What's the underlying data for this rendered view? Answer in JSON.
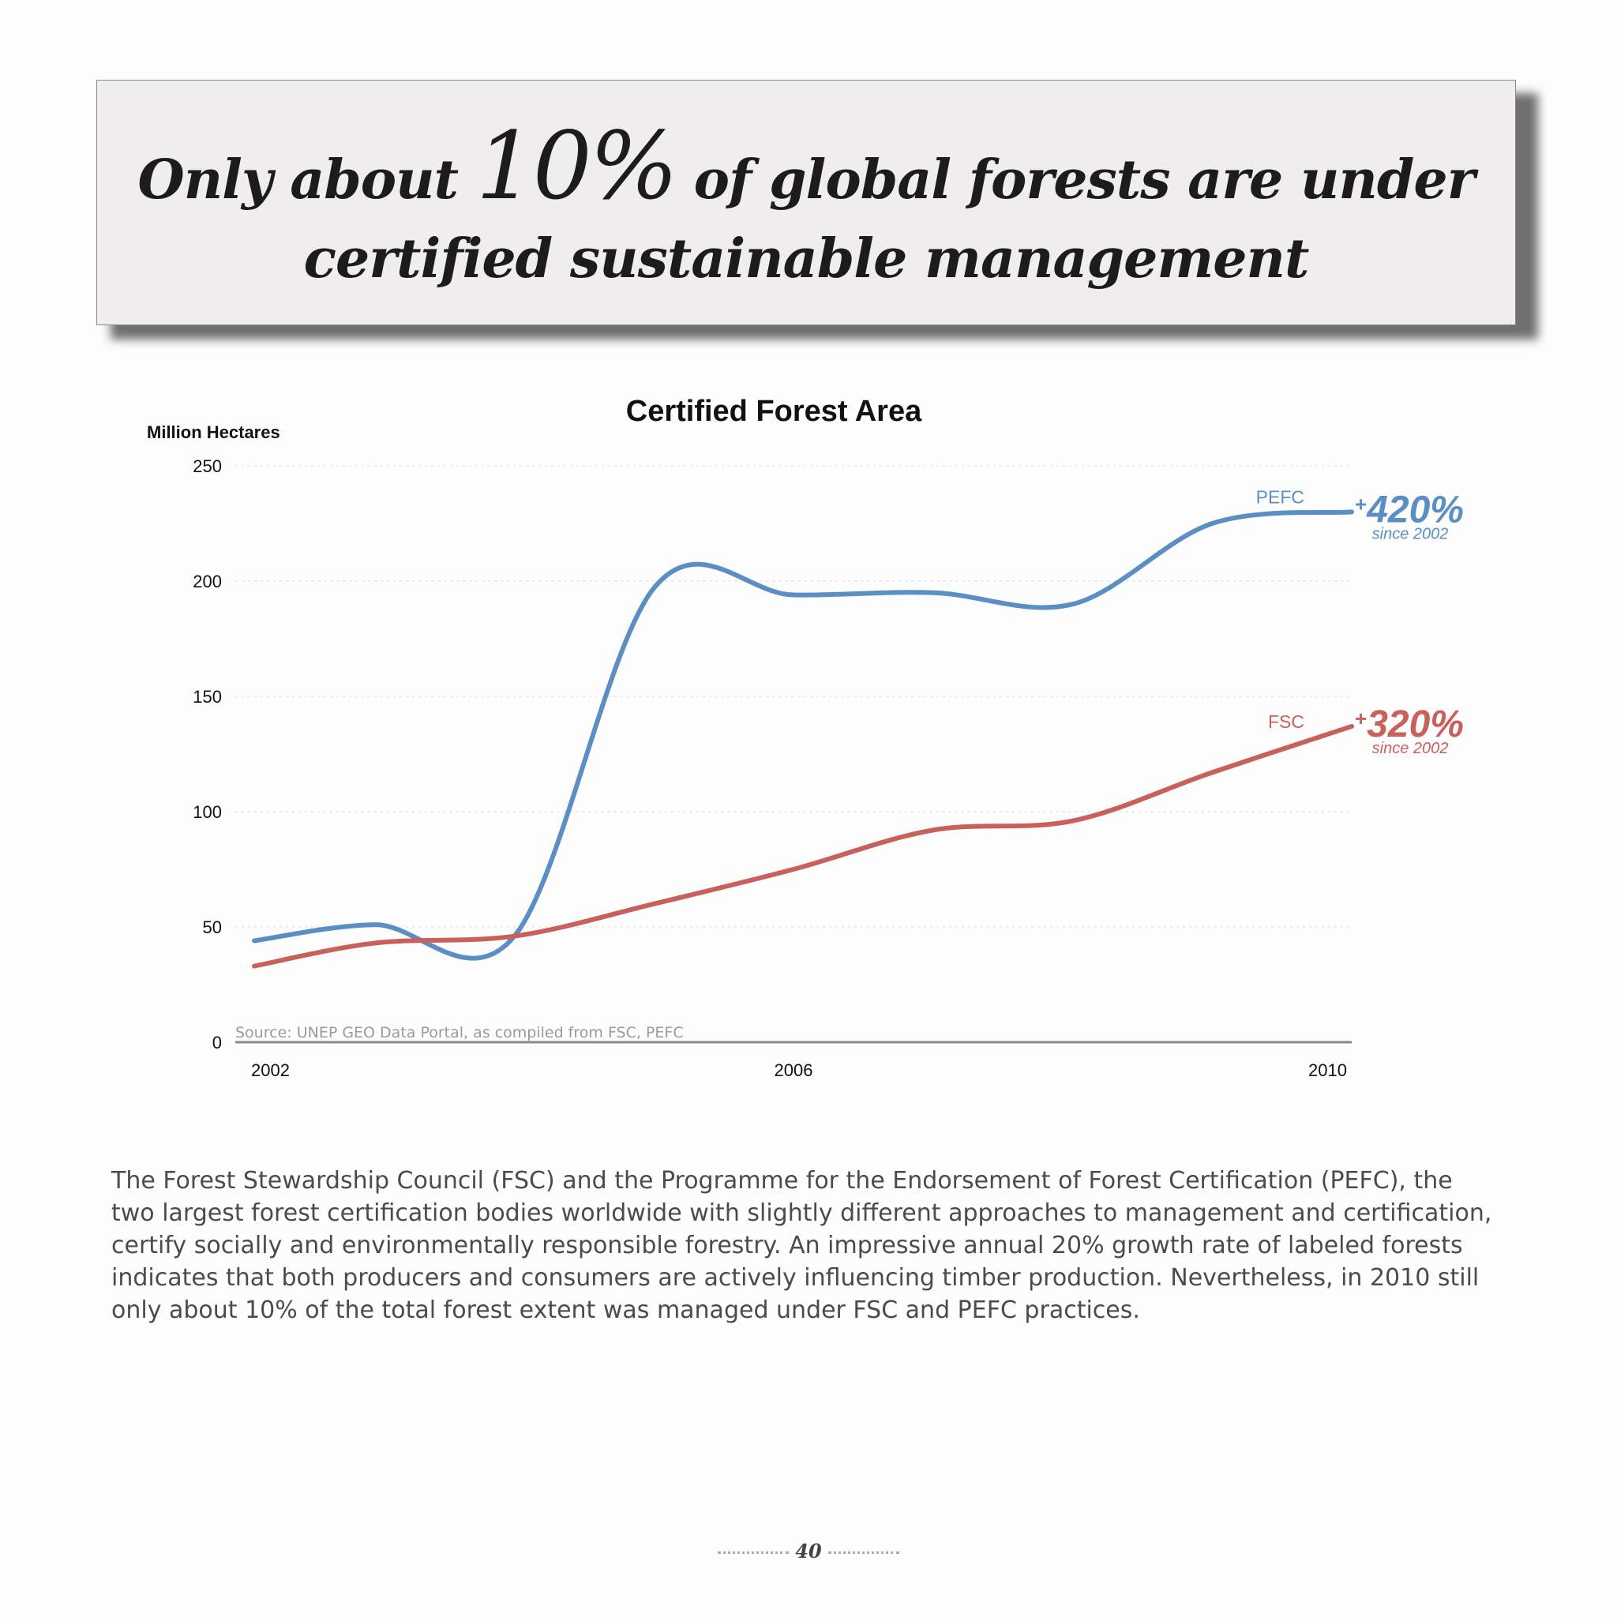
{
  "banner": {
    "line1_pre": "Only about",
    "line1_highlight": "10%",
    "line1_post": "of global forests are under",
    "line2": "certified sustainable management"
  },
  "chart_data": {
    "type": "line",
    "title": "Certified Forest Area",
    "ylabel": "Million Hectares",
    "xlabel": "",
    "ylim": [
      0,
      250
    ],
    "yticks": [
      0,
      50,
      100,
      150,
      200,
      250
    ],
    "xlim": [
      2002,
      2010
    ],
    "xticks": [
      "2002",
      "2006",
      "2010"
    ],
    "x": [
      2002,
      2003,
      2004,
      2005,
      2006,
      2007,
      2008,
      2009,
      2010
    ],
    "grid": true,
    "series": [
      {
        "name": "PEFC",
        "color": "#5b8fc4",
        "values": [
          44,
          51,
          46,
          197,
          194,
          195,
          190,
          225,
          230
        ],
        "annotation": {
          "prefix": "+",
          "value": "420%",
          "note": "since 2002"
        }
      },
      {
        "name": "FSC",
        "color": "#c9605b",
        "values": [
          33,
          43,
          46,
          60,
          75,
          92,
          96,
          117,
          137
        ],
        "annotation": {
          "prefix": "+",
          "value": "320%",
          "note": "since 2002"
        }
      }
    ],
    "source": "Source: UNEP GEO Data Portal, as compiled from FSC, PEFC"
  },
  "body": {
    "paragraph": "The Forest Stewardship Council (FSC) and the Programme for the Endorsement of Forest Certification (PEFC), the two largest forest certification bodies worldwide with slightly different approaches to management and certification, certify socially and environmentally responsible forestry. An impressive annual 20% growth rate of labeled forests indicates that both producers and consumers are actively influencing timber production. Nevertheless, in 2010 still only about 10% of the total forest extent was managed under FSC and PEFC practices."
  },
  "page": {
    "number": "40"
  }
}
